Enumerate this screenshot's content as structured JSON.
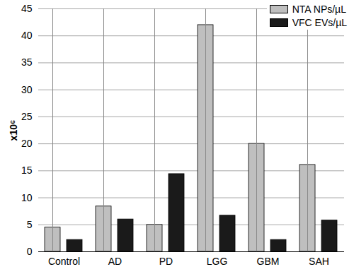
{
  "chart_data": {
    "type": "bar",
    "categories": [
      "Control",
      "AD",
      "PD",
      "LGG",
      "GBM",
      "SAH"
    ],
    "series": [
      {
        "name": "NTA NPs/µL",
        "color": "#bfbfbf",
        "values": [
          4.5,
          8.4,
          5.0,
          42.0,
          20.0,
          16.1
        ]
      },
      {
        "name": "VFC EVs/µL",
        "color": "#1a1a1a",
        "values": [
          2.2,
          6.0,
          14.4,
          6.7,
          2.2,
          5.8
        ]
      }
    ],
    "ylabel": "x10⁶",
    "ylim": [
      0,
      45
    ],
    "yticks": [
      0,
      5,
      10,
      15,
      20,
      25,
      30,
      35,
      40,
      45
    ],
    "grid": true,
    "legend": "top-right"
  }
}
